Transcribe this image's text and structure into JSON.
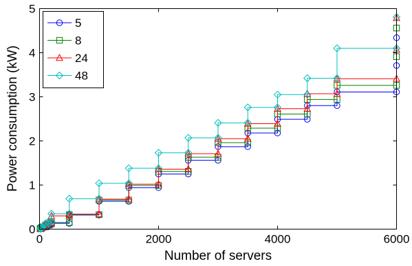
{
  "chart_data": {
    "type": "line",
    "title": "",
    "xlabel": "Number of servers",
    "ylabel": "Power consumption (kW)",
    "xlim": [
      0,
      6000
    ],
    "ylim": [
      0,
      5
    ],
    "xticks": [
      0,
      2000,
      4000,
      6000
    ],
    "yticks": [
      0,
      1,
      2,
      3,
      4,
      5
    ],
    "grid": false,
    "legend_position": "top-left",
    "x": [
      10,
      20,
      30,
      40,
      50,
      100,
      150,
      200,
      500,
      1000,
      1500,
      2000,
      2500,
      3000,
      3500,
      4000,
      4500,
      5000,
      6000
    ],
    "series": [
      {
        "name": "5",
        "marker": "circle",
        "color": "#0000ff",
        "values": [
          0.01,
          0.02,
          0.03,
          0.04,
          0.05,
          0.08,
          0.1,
          0.13,
          0.32,
          0.63,
          0.94,
          1.25,
          1.56,
          1.87,
          2.18,
          2.49,
          2.8,
          3.11,
          3.71
        ],
        "end_value": 4.34
      },
      {
        "name": "8",
        "marker": "square",
        "color": "#008000",
        "values": [
          0.01,
          0.02,
          0.03,
          0.04,
          0.05,
          0.09,
          0.12,
          0.15,
          0.33,
          0.66,
          0.99,
          1.31,
          1.63,
          1.96,
          2.29,
          2.61,
          2.94,
          3.26,
          3.91
        ],
        "end_value": 4.56
      },
      {
        "name": "24",
        "marker": "triangle",
        "color": "#ff0000",
        "values": [
          0.01,
          0.02,
          0.03,
          0.04,
          0.05,
          0.11,
          0.15,
          0.3,
          0.34,
          0.68,
          1.02,
          1.36,
          1.71,
          2.05,
          2.39,
          2.73,
          3.07,
          3.41,
          4.07
        ],
        "end_value": 4.79
      },
      {
        "name": "48",
        "marker": "diamond",
        "color": "#00bfbf",
        "values": [
          0.01,
          0.02,
          0.03,
          0.04,
          0.05,
          0.13,
          0.17,
          0.35,
          0.69,
          1.04,
          1.38,
          1.73,
          2.07,
          2.41,
          2.76,
          3.05,
          3.42,
          4.1,
          4.1
        ],
        "end_value": 4.81
      }
    ]
  }
}
